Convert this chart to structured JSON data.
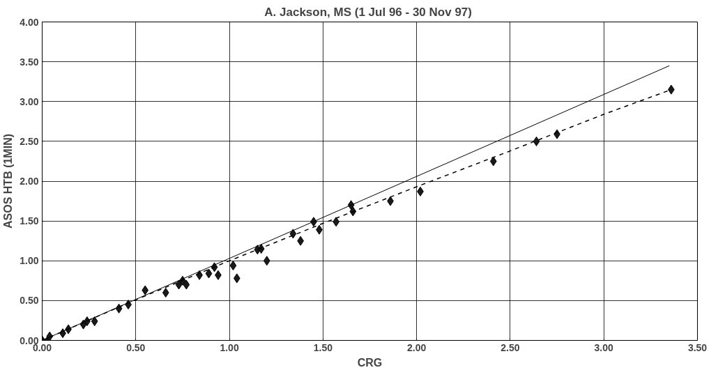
{
  "chart_data": {
    "type": "scatter",
    "title": "A.  Jackson, MS (1 Jul 96 - 30 Nov 97)",
    "xlabel": "CRG",
    "ylabel": "ASOS HTB (1MIN)",
    "xlim": [
      0,
      3.5
    ],
    "ylim": [
      0,
      4
    ],
    "xticks": [
      {
        "value": 0,
        "label": "0.00"
      },
      {
        "value": 0.5,
        "label": "0.50"
      },
      {
        "value": 1,
        "label": "1.00"
      },
      {
        "value": 1.5,
        "label": "1.50"
      },
      {
        "value": 2,
        "label": "2.00"
      },
      {
        "value": 2.5,
        "label": "2.50"
      },
      {
        "value": 3,
        "label": "3.00"
      },
      {
        "value": 3.5,
        "label": "3.50"
      }
    ],
    "yticks": [
      {
        "value": 0,
        "label": "0.00"
      },
      {
        "value": 0.5,
        "label": "0.50"
      },
      {
        "value": 1,
        "label": "1.00"
      },
      {
        "value": 1.5,
        "label": "1.50"
      },
      {
        "value": 2,
        "label": "2.00"
      },
      {
        "value": 2.5,
        "label": "2.50"
      },
      {
        "value": 3,
        "label": "3.00"
      },
      {
        "value": 3.5,
        "label": "3.50"
      },
      {
        "value": 4,
        "label": "4.00"
      }
    ],
    "grid": true,
    "series": [
      {
        "color": "#1a1a1a",
        "marker": "diamond",
        "x": [
          0.0,
          0.03,
          0.04,
          0.11,
          0.14,
          0.22,
          0.24,
          0.28,
          0.41,
          0.46,
          0.55,
          0.66,
          0.73,
          0.75,
          0.77,
          0.84,
          0.89,
          0.92,
          0.94,
          1.02,
          1.04,
          1.15,
          1.17,
          1.2,
          1.34,
          1.38,
          1.45,
          1.48,
          1.57,
          1.65,
          1.66,
          1.86,
          2.02,
          2.41,
          2.64,
          2.75,
          3.36
        ],
        "values": [
          0.0,
          0.0,
          0.05,
          0.09,
          0.14,
          0.2,
          0.24,
          0.24,
          0.4,
          0.45,
          0.63,
          0.6,
          0.7,
          0.75,
          0.7,
          0.82,
          0.84,
          0.92,
          0.82,
          0.94,
          0.78,
          1.14,
          1.15,
          1.0,
          1.34,
          1.25,
          1.49,
          1.39,
          1.49,
          1.7,
          1.62,
          1.75,
          1.87,
          2.25,
          2.5,
          2.59,
          3.15
        ]
      },
      {
        "type": "line",
        "color": "#000000",
        "line_style": "solid",
        "marker": "none",
        "x": [
          0,
          3.35
        ],
        "values": [
          0,
          3.45
        ]
      },
      {
        "type": "line",
        "color": "#000000",
        "line_style": "dashed",
        "marker": "none",
        "x": [
          0,
          0.5,
          1.0,
          1.5,
          2.0,
          2.5,
          3.0,
          3.36
        ],
        "values": [
          0,
          0.51,
          1.0,
          1.47,
          1.93,
          2.38,
          2.84,
          3.15
        ]
      }
    ]
  }
}
